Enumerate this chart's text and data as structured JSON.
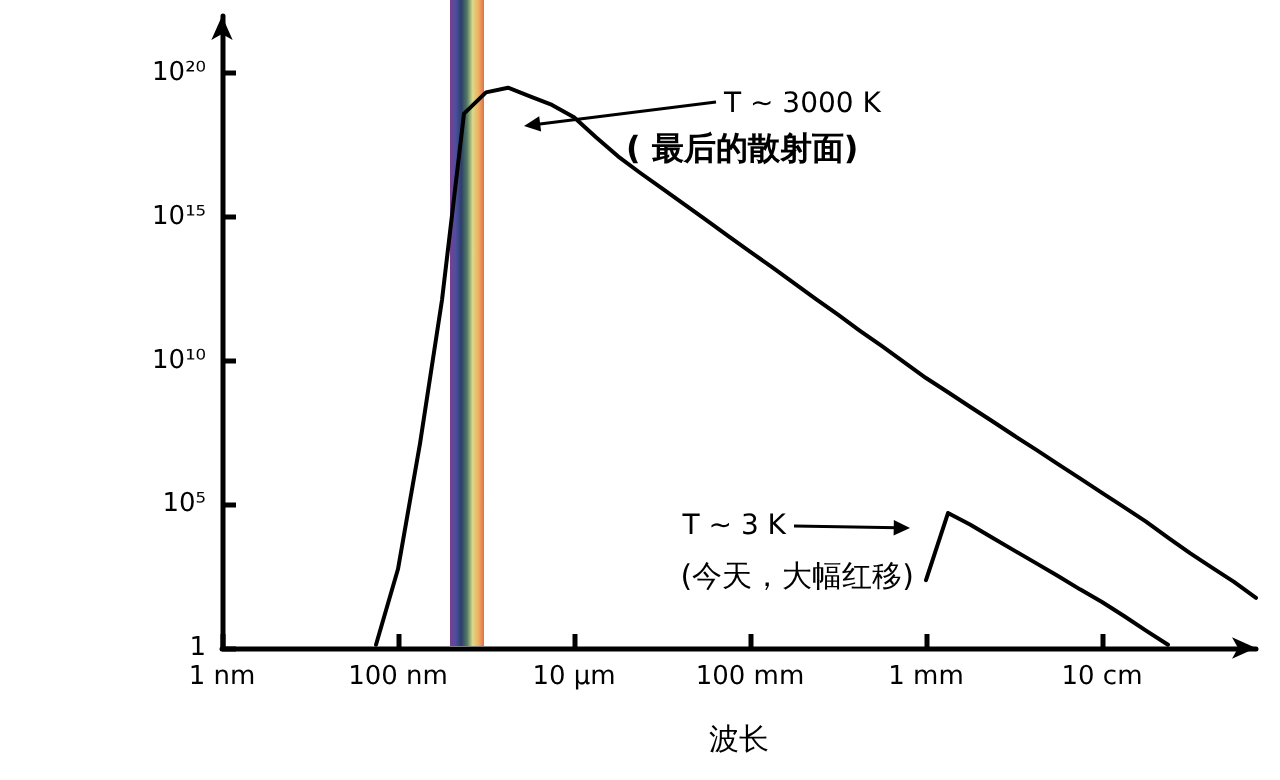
{
  "chart_data": {
    "type": "line",
    "xlabel": "波长",
    "log": "y",
    "grid": false,
    "marker": "none",
    "line_style": "solid",
    "categories": [
      "1 nm",
      null,
      null,
      null,
      null,
      null,
      null,
      null,
      "100 nm",
      null,
      null,
      null,
      null,
      null,
      null,
      null,
      "10 µm",
      null,
      null,
      null,
      null,
      null,
      null,
      null,
      "100 mm",
      null,
      null,
      null,
      null,
      null,
      null,
      null,
      "1 mm",
      null,
      null,
      null,
      null,
      null,
      null,
      null,
      "10 cm",
      null,
      null,
      null,
      null,
      null,
      null,
      null
    ],
    "ylim": [
      1,
      1e+22
    ],
    "yticks": [
      1,
      {
        "value": 100000,
        "label": "10⁵"
      },
      {
        "value": 10000000000,
        "label": "10¹⁰"
      },
      {
        "value": 1000000000000000.0,
        "label": "10¹⁵"
      },
      {
        "value": 1e+20,
        "label": "10²⁰"
      }
    ],
    "series": [
      {
        "color": "#000000",
        "values": [
          null,
          null,
          null,
          null,
          null,
          null,
          null,
          1.3,
          560,
          13000000,
          1300000000000.0,
          4e+18,
          2.2e+19,
          3.2e+19,
          1.6e+19,
          8e+18,
          3e+18,
          6e+17,
          1.3e+17,
          3.5e+16,
          1e+16,
          2800000000000000.0,
          800000000000000.0,
          220000000000000.0,
          63000000000000.0,
          18000000000000.0,
          5000000000000.0,
          1400000000000.0,
          400000000000.0,
          110000000000.0,
          32000000000.0,
          9000000000,
          2500000000,
          800000000,
          250000000,
          80000000,
          25000000,
          8000000,
          2500000,
          800000,
          250000,
          80000,
          25000,
          7000,
          2000,
          630,
          200,
          56
        ]
      },
      {
        "color": "#000000",
        "values": [
          null,
          null,
          null,
          null,
          null,
          null,
          null,
          null,
          null,
          null,
          null,
          null,
          null,
          null,
          null,
          null,
          null,
          null,
          null,
          null,
          null,
          null,
          null,
          null,
          null,
          null,
          null,
          null,
          null,
          null,
          null,
          null,
          230,
          50000,
          20000,
          7000,
          2500,
          900,
          320,
          110,
          40,
          13,
          4,
          1.3,
          null,
          null,
          null,
          null
        ]
      }
    ],
    "annotations": [
      "T ~ 3000 K",
      "( 最后的散射面)",
      "T ~ 3 K",
      "(今天，大幅红移)"
    ]
  }
}
